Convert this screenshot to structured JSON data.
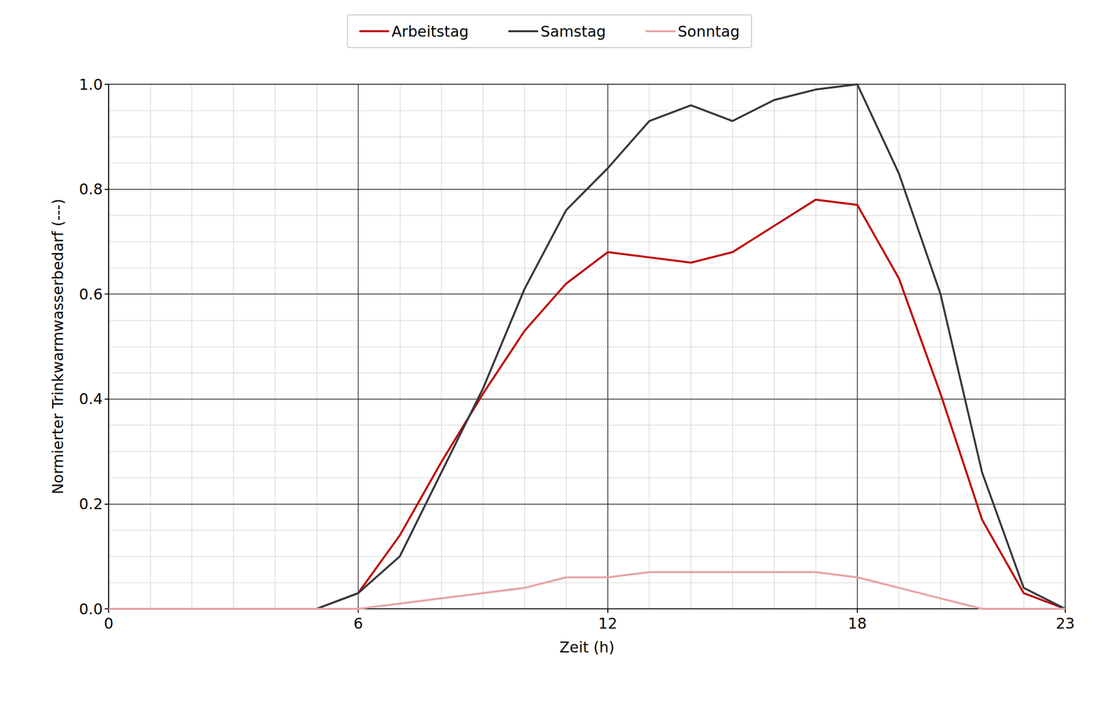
{
  "chart_data": {
    "type": "line",
    "x_label": "Zeit (h)",
    "y_label": "Normierter Trinkwarmwasserbedarf (---)",
    "x": [
      0,
      1,
      2,
      3,
      4,
      5,
      6,
      7,
      8,
      9,
      10,
      11,
      12,
      13,
      14,
      15,
      16,
      17,
      18,
      19,
      20,
      21,
      22,
      23
    ],
    "series": [
      {
        "name": "Arbeitstag",
        "color": "#c00000",
        "values": [
          0,
          0,
          0,
          0,
          0,
          0,
          0.03,
          0.14,
          0.28,
          0.41,
          0.53,
          0.62,
          0.68,
          0.67,
          0.66,
          0.68,
          0.73,
          0.78,
          0.77,
          0.63,
          0.41,
          0.17,
          0.03,
          0
        ]
      },
      {
        "name": "Samstag",
        "color": "#36393e",
        "values": [
          0,
          0,
          0,
          0,
          0,
          0,
          0.03,
          0.1,
          0.26,
          0.42,
          0.61,
          0.76,
          0.84,
          0.93,
          0.96,
          0.93,
          0.97,
          0.99,
          1.0,
          0.83,
          0.6,
          0.26,
          0.04,
          0
        ]
      },
      {
        "name": "Sonntag",
        "color": "#e8a3a3",
        "values": [
          0,
          0,
          0,
          0,
          0,
          0,
          0,
          0.01,
          0.02,
          0.03,
          0.04,
          0.06,
          0.06,
          0.07,
          0.07,
          0.07,
          0.07,
          0.07,
          0.06,
          0.04,
          0.02,
          0,
          0,
          0
        ]
      }
    ],
    "xlim": [
      0,
      23
    ],
    "xticks": [
      0,
      6,
      12,
      18,
      23
    ],
    "ylim": [
      0,
      1
    ],
    "yticks": [
      {
        "value": 0,
        "label": "0.0"
      },
      0.2,
      0.4,
      0.6,
      0.8,
      {
        "value": 1,
        "label": "1.0"
      }
    ],
    "grid": true,
    "legend": "top"
  }
}
